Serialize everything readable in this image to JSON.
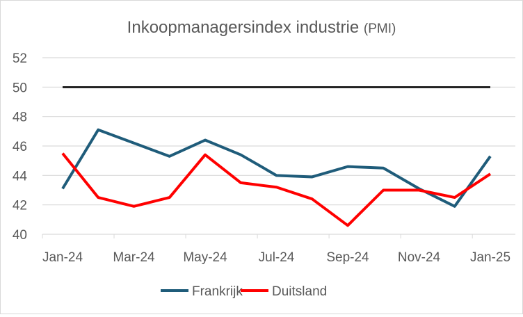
{
  "chart_data": {
    "type": "line",
    "title": "Inkoopmanagersindex industrie",
    "title_suffix": "(PMI)",
    "xlabel": "",
    "ylabel": "",
    "ylim": [
      40,
      52
    ],
    "yticks": [
      40,
      42,
      44,
      46,
      48,
      50,
      52
    ],
    "grid": true,
    "x": [
      "Jan-24",
      "Feb-24",
      "Mar-24",
      "Apr-24",
      "May-24",
      "Jun-24",
      "Jul-24",
      "Aug-24",
      "Sep-24",
      "Oct-24",
      "Nov-24",
      "Dec-24",
      "Jan-25"
    ],
    "xtick_labels": [
      "Jan-24",
      "Mar-24",
      "May-24",
      "Jul-24",
      "Sep-24",
      "Nov-24",
      "Jan-25"
    ],
    "reference_line": {
      "value": 50,
      "color": "#000000"
    },
    "legend_position": "bottom",
    "series": [
      {
        "name": "Frankrijk",
        "color": "#1F5C7A",
        "values": [
          43.1,
          47.1,
          46.2,
          45.3,
          46.4,
          45.4,
          44.0,
          43.9,
          44.6,
          44.5,
          43.1,
          41.9,
          45.3
        ]
      },
      {
        "name": "Duitsland",
        "color": "#FF0000",
        "values": [
          45.5,
          42.5,
          41.9,
          42.5,
          45.4,
          43.5,
          43.2,
          42.4,
          40.6,
          43.0,
          43.0,
          42.5,
          44.1
        ]
      }
    ]
  }
}
